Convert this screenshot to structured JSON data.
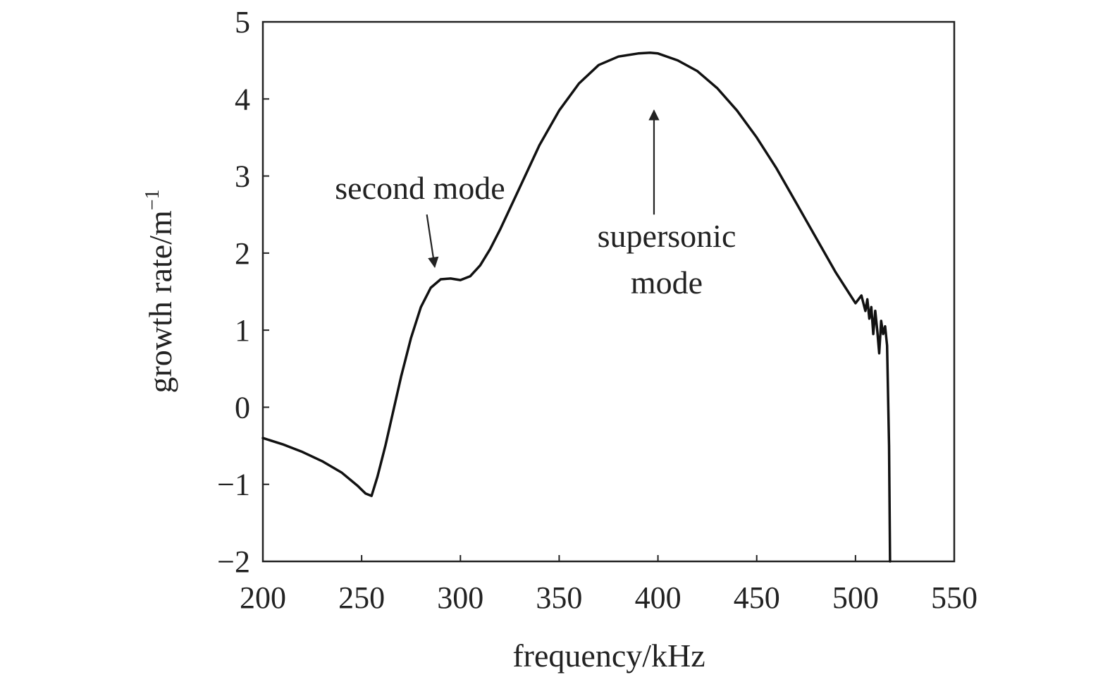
{
  "chart_data": {
    "type": "line",
    "title": "",
    "xlabel": "frequency/kHz",
    "ylabel_base": "growth rate/m",
    "ylabel_sup": "−1",
    "xlim": [
      200,
      550
    ],
    "ylim": [
      -2,
      5
    ],
    "x_ticks": [
      200,
      250,
      300,
      350,
      400,
      450,
      500,
      550
    ],
    "y_ticks": [
      -2,
      -1,
      0,
      1,
      2,
      3,
      4,
      5
    ],
    "x_tick_labels": [
      "200",
      "250",
      "300",
      "350",
      "400",
      "450",
      "500",
      "550"
    ],
    "y_tick_labels": [
      "−2",
      "−1",
      "0",
      "1",
      "2",
      "3",
      "4",
      "5"
    ],
    "grid": false,
    "line_color": "#111111",
    "series": [
      {
        "x": [
          200,
          210,
          220,
          230,
          240,
          248,
          252,
          255,
          258,
          262,
          266,
          270,
          275,
          280,
          285,
          290,
          295,
          300,
          305,
          310,
          315,
          320,
          330,
          340,
          350,
          360,
          370,
          380,
          390,
          396,
          400,
          410,
          420,
          430,
          440,
          450,
          460,
          470,
          480,
          490,
          495,
          500,
          503,
          505,
          506,
          507,
          508,
          509,
          510,
          511,
          512,
          513,
          514,
          515,
          516,
          517,
          517.5
        ],
        "y": [
          -0.4,
          -0.48,
          -0.58,
          -0.7,
          -0.85,
          -1.02,
          -1.12,
          -1.15,
          -0.9,
          -0.5,
          -0.05,
          0.4,
          0.9,
          1.3,
          1.55,
          1.66,
          1.67,
          1.65,
          1.7,
          1.84,
          2.05,
          2.3,
          2.85,
          3.4,
          3.85,
          4.2,
          4.44,
          4.55,
          4.59,
          4.6,
          4.59,
          4.5,
          4.36,
          4.14,
          3.85,
          3.5,
          3.1,
          2.65,
          2.2,
          1.75,
          1.55,
          1.35,
          1.45,
          1.25,
          1.4,
          1.15,
          1.3,
          0.95,
          1.25,
          1.0,
          0.7,
          1.12,
          0.95,
          1.05,
          0.8,
          -0.5,
          -2.0
        ]
      }
    ],
    "annotations": [
      {
        "lines": [
          "second mode"
        ],
        "arrow_from": [
          283,
          2.5
        ],
        "arrow_to": [
          287,
          1.82
        ]
      },
      {
        "lines": [
          "supersonic",
          "mode"
        ],
        "arrow_from": [
          398,
          2.5
        ],
        "arrow_to": [
          398,
          3.85
        ]
      }
    ]
  }
}
